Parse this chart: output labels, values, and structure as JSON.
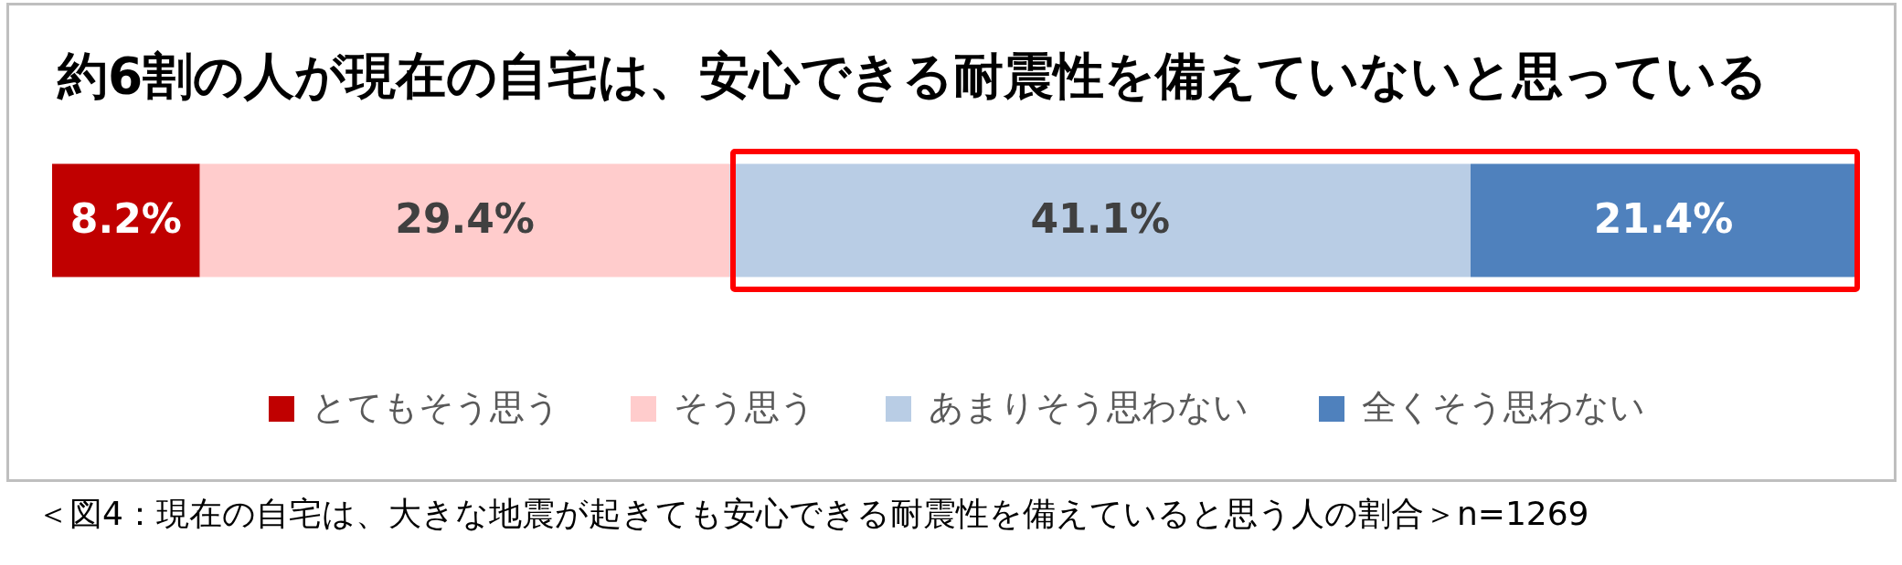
{
  "chart_data": {
    "type": "bar",
    "orientation": "horizontal",
    "stacked": true,
    "title": "約6割の人が現在の自宅は、安心できる耐震性を備えていないと思っている",
    "annotations": [
      "＜図4：現在の自宅は、大きな地震が起きても安心できる耐震性を備えていると思う人の割合＞n=1269"
    ],
    "categories": [
      null
    ],
    "series": [
      {
        "name": "とてもそう思う",
        "color": "#c00000",
        "values": [
          8.2
        ],
        "value_labels": [
          "8.2%"
        ]
      },
      {
        "name": "そう思う",
        "color": "#ffcccc",
        "values": [
          29.4
        ],
        "value_labels": [
          "29.4%"
        ]
      },
      {
        "name": "あまりそう思わない",
        "color": "#b9cde5",
        "values": [
          41.1
        ],
        "value_labels": [
          "41.1%"
        ]
      },
      {
        "name": "全くそう思わない",
        "color": "#4f81bd",
        "values": [
          21.4
        ],
        "value_labels": [
          "21.4%"
        ]
      }
    ],
    "xlim": [
      0,
      100.1
    ],
    "tick_labels": false,
    "legend": "bottom"
  }
}
